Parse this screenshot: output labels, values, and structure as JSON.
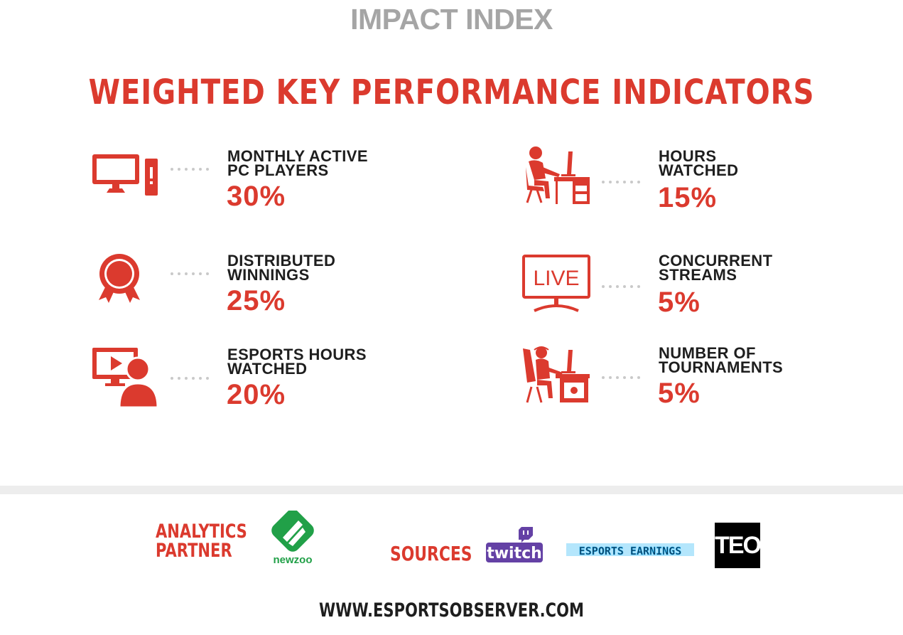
{
  "header": {
    "title": "IMPACT INDEX",
    "subtitle": "WEIGHTED KEY PERFORMANCE INDICATORS"
  },
  "kpis": [
    {
      "icon": "desktop-computer-icon",
      "label_lines": [
        "MONTHLY ACTIVE",
        "PC PLAYERS"
      ],
      "percent": "30%",
      "weight": 30
    },
    {
      "icon": "viewer-at-desk-icon",
      "label_lines": [
        "HOURS",
        "WATCHED"
      ],
      "percent": "15%",
      "weight": 15
    },
    {
      "icon": "award-medal-icon",
      "label_lines": [
        "DISTRIBUTED",
        "WINNINGS"
      ],
      "percent": "25%",
      "weight": 25
    },
    {
      "icon": "live-tv-icon",
      "label_lines": [
        "CONCURRENT",
        "STREAMS"
      ],
      "percent": "5%",
      "weight": 5
    },
    {
      "icon": "video-viewer-icon",
      "label_lines": [
        "ESPORTS HOURS",
        "WATCHED"
      ],
      "percent": "20%",
      "weight": 20
    },
    {
      "icon": "gamer-at-desk-icon",
      "label_lines": [
        "NUMBER OF",
        "TOURNAMENTS"
      ],
      "percent": "5%",
      "weight": 5
    }
  ],
  "footer": {
    "partner_lines": [
      "ANALYTICS",
      "PARTNER"
    ],
    "partner_logo_text": "newzoo",
    "sources_label": "SOURCES",
    "sources": [
      "twitch",
      "ESPORTS EARNINGS",
      "TEO"
    ],
    "url": "WWW.ESPORTSOBSERVER.COM"
  },
  "colors": {
    "accent_red": "#db3a2e",
    "title_gray": "#a5a5a5",
    "text_dark": "#1e1e1e",
    "newzoo_green": "#21a048",
    "twitch_purple": "#6441a5",
    "earnings_blue": "#29b6f6"
  }
}
